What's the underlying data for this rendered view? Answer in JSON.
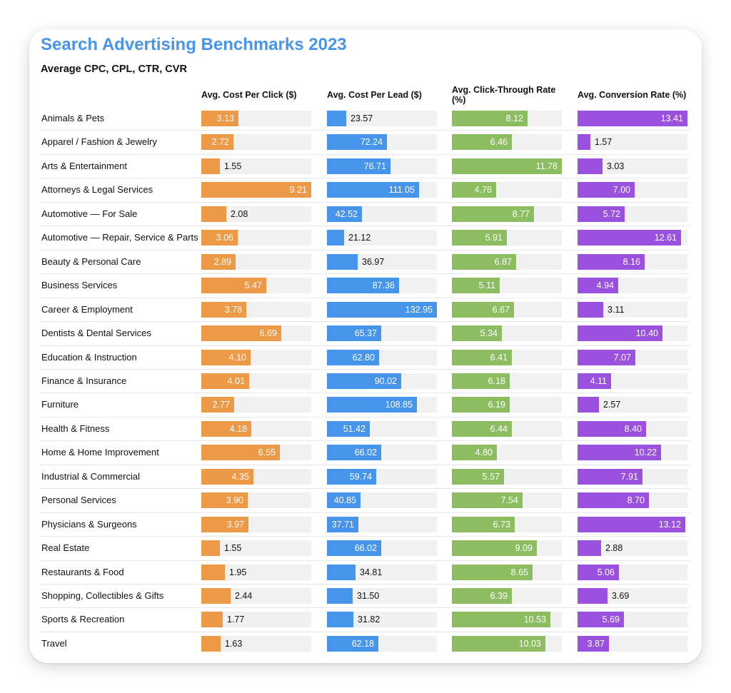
{
  "title": "Search Advertising Benchmarks 2023",
  "subtitle": "Average CPC, CPL, CTR, CVR",
  "chart_data": {
    "type": "table",
    "categories": [
      "Animals & Pets",
      "Apparel / Fashion & Jewelry",
      "Arts & Entertainment",
      "Attorneys & Legal Services",
      "Automotive — For Sale",
      "Automotive — Repair, Service & Parts",
      "Beauty & Personal Care",
      "Business Services",
      "Career & Employment",
      "Dentists & Dental Services",
      "Education & Instruction",
      "Finance & Insurance",
      "Furniture",
      "Health & Fitness",
      "Home & Home Improvement",
      "Industrial & Commercial",
      "Personal Services",
      "Physicians & Surgeons",
      "Real Estate",
      "Restaurants & Food",
      "Shopping, Collectibles & Gifts",
      "Sports & Recreation",
      "Travel"
    ],
    "series": [
      {
        "name": "Avg. Cost Per Click ($)",
        "color": "#ed9a48",
        "values": [
          3.13,
          2.72,
          1.55,
          9.21,
          2.08,
          3.06,
          2.89,
          5.47,
          3.78,
          6.69,
          4.1,
          4.01,
          2.77,
          4.18,
          6.55,
          4.35,
          3.9,
          3.97,
          1.55,
          1.95,
          2.44,
          1.77,
          1.63
        ],
        "labels": [
          "3.13",
          "2.72",
          "1.55",
          "9.21",
          "2.08",
          "3.06",
          "2.89",
          "5.47",
          "3.78",
          "6.69",
          "4.10",
          "4.01",
          "2.77",
          "4.18",
          "6.55",
          "4.35",
          "3.90",
          "3.97",
          "1.55",
          "1.95",
          "2.44",
          "1.77",
          "1.63"
        ]
      },
      {
        "name": "Avg. Cost Per Lead ($)",
        "color": "#4795eb",
        "values": [
          23.57,
          72.24,
          76.71,
          111.05,
          42.52,
          21.12,
          36.97,
          87.36,
          132.95,
          65.37,
          62.8,
          90.02,
          108.85,
          51.42,
          66.02,
          59.74,
          40.85,
          37.71,
          66.02,
          34.81,
          31.5,
          31.82,
          62.18
        ],
        "labels": [
          "23.57",
          "72.24",
          "76.71",
          "111.05",
          "42.52",
          "21.12",
          "36.97",
          "87.36",
          "132.95",
          "65.37",
          "62.80",
          "90.02",
          "108.85",
          "51.42",
          "66.02",
          "59.74",
          "40.85",
          "37.71",
          "66.02",
          "34.81",
          "31.50",
          "31.82",
          "62.18"
        ]
      },
      {
        "name": "Avg. Click-Through Rate (%)",
        "color": "#8cbd60",
        "values": [
          8.12,
          6.46,
          11.78,
          4.76,
          8.77,
          5.91,
          6.87,
          5.11,
          6.67,
          5.34,
          6.41,
          6.18,
          6.19,
          6.44,
          4.8,
          5.57,
          7.54,
          6.73,
          9.09,
          8.65,
          6.39,
          10.53,
          10.03
        ],
        "labels": [
          "8.12",
          "6.46",
          "11.78",
          "4.76",
          "8.77",
          "5.91",
          "6.87",
          "5.11",
          "6.67",
          "5.34",
          "6.41",
          "6.18",
          "6.19",
          "6.44",
          "4.80",
          "5.57",
          "7.54",
          "6.73",
          "9.09",
          "8.65",
          "6.39",
          "10.53",
          "10.03"
        ]
      },
      {
        "name": "Avg. Conversion Rate (%)",
        "color": "#9a52de",
        "values": [
          13.41,
          1.57,
          3.03,
          7.0,
          5.72,
          12.61,
          8.16,
          4.94,
          3.11,
          10.4,
          7.07,
          4.11,
          2.57,
          8.4,
          10.22,
          7.91,
          8.7,
          13.12,
          2.88,
          5.06,
          3.69,
          5.69,
          3.87
        ],
        "labels": [
          "13.41",
          "1.57",
          "3.03",
          "7.00",
          "5.72",
          "12.61",
          "8.16",
          "4.94",
          "3.11",
          "10.40",
          "7.07",
          "4.11",
          "2.57",
          "8.40",
          "10.22",
          "7.91",
          "8.70",
          "13.12",
          "2.88",
          "5.06",
          "3.69",
          "5.69",
          "3.87"
        ]
      }
    ]
  }
}
